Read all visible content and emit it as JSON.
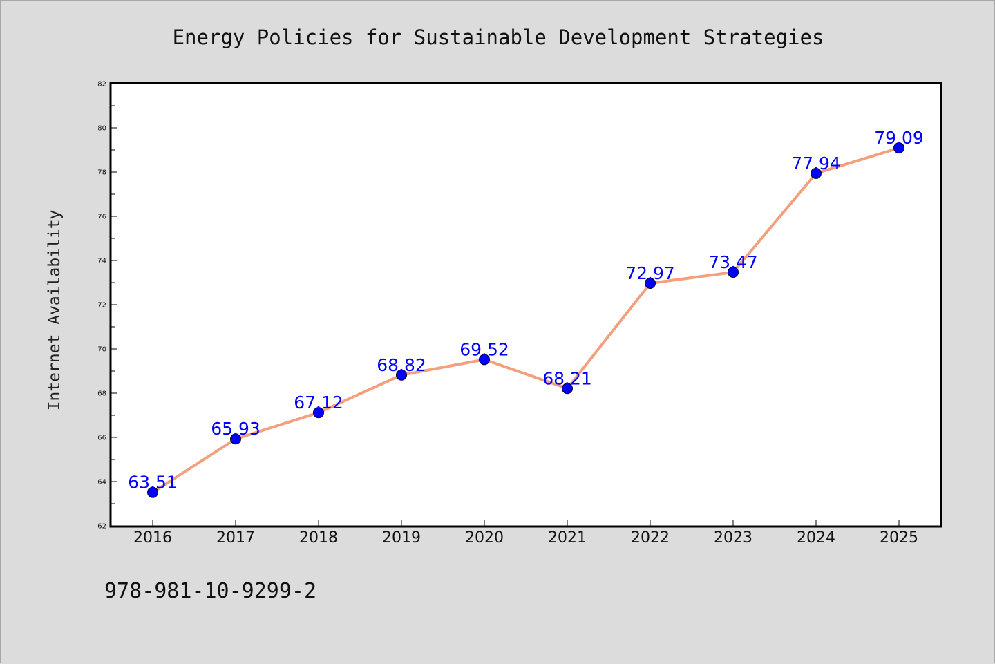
{
  "footer": {
    "isbn": "978-981-10-9299-2"
  },
  "colors": {
    "background": "#dcdcdc",
    "plot_background": "#ffffff",
    "line": "#f4a07c",
    "marker": "#0000ff",
    "label": "#0000ff"
  },
  "chart_data": {
    "type": "line",
    "title": "Energy Policies for Sustainable Development Strategies",
    "xlabel": "",
    "ylabel": "Internet Availability",
    "categories": [
      "2016",
      "2017",
      "2018",
      "2019",
      "2020",
      "2021",
      "2022",
      "2023",
      "2024",
      "2025"
    ],
    "series": [
      {
        "values": [
          63.51,
          65.93,
          67.12,
          68.82,
          69.52,
          68.21,
          72.97,
          73.47,
          77.94,
          79.09
        ]
      }
    ],
    "ylim": [
      62,
      82
    ],
    "yticks": [
      62,
      64,
      66,
      68,
      70,
      72,
      74,
      76,
      78,
      80,
      82
    ],
    "data_labels": [
      "63.51",
      "65.93",
      "67.12",
      "68.82",
      "69.52",
      "68.21",
      "72.97",
      "73.47",
      "77.94",
      "79.09"
    ],
    "grid": false,
    "legend": "none"
  }
}
